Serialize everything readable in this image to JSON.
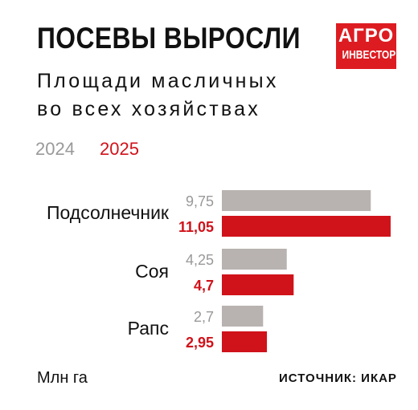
{
  "header": {
    "title": "ПОСЕВЫ ВЫРОСЛИ",
    "subtitle_line1": "Площади масличных",
    "subtitle_line2": "во всех хозяйствах"
  },
  "logo": {
    "line1": "АГРО",
    "line2": "ИНВЕСТОР"
  },
  "footer": {
    "unit": "Млн га",
    "source": "ИСТОЧНИК: ИКАР"
  },
  "colors": {
    "y2024": "#b8b3b0",
    "y2025": "#d0121a",
    "label2024": "#999999"
  },
  "chart_data": {
    "type": "bar",
    "orientation": "horizontal",
    "categories": [
      "Подсолнечник",
      "Соя",
      "Рапс"
    ],
    "series": [
      {
        "name": "2024",
        "values": [
          9.75,
          4.25,
          2.7
        ],
        "labels": [
          "9,75",
          "4,25",
          "2,7"
        ]
      },
      {
        "name": "2025",
        "values": [
          11.05,
          4.7,
          2.95
        ],
        "labels": [
          "11,05",
          "4,7",
          "2,95"
        ]
      }
    ],
    "unit": "Млн га",
    "grid": false,
    "legend": "top-left"
  }
}
